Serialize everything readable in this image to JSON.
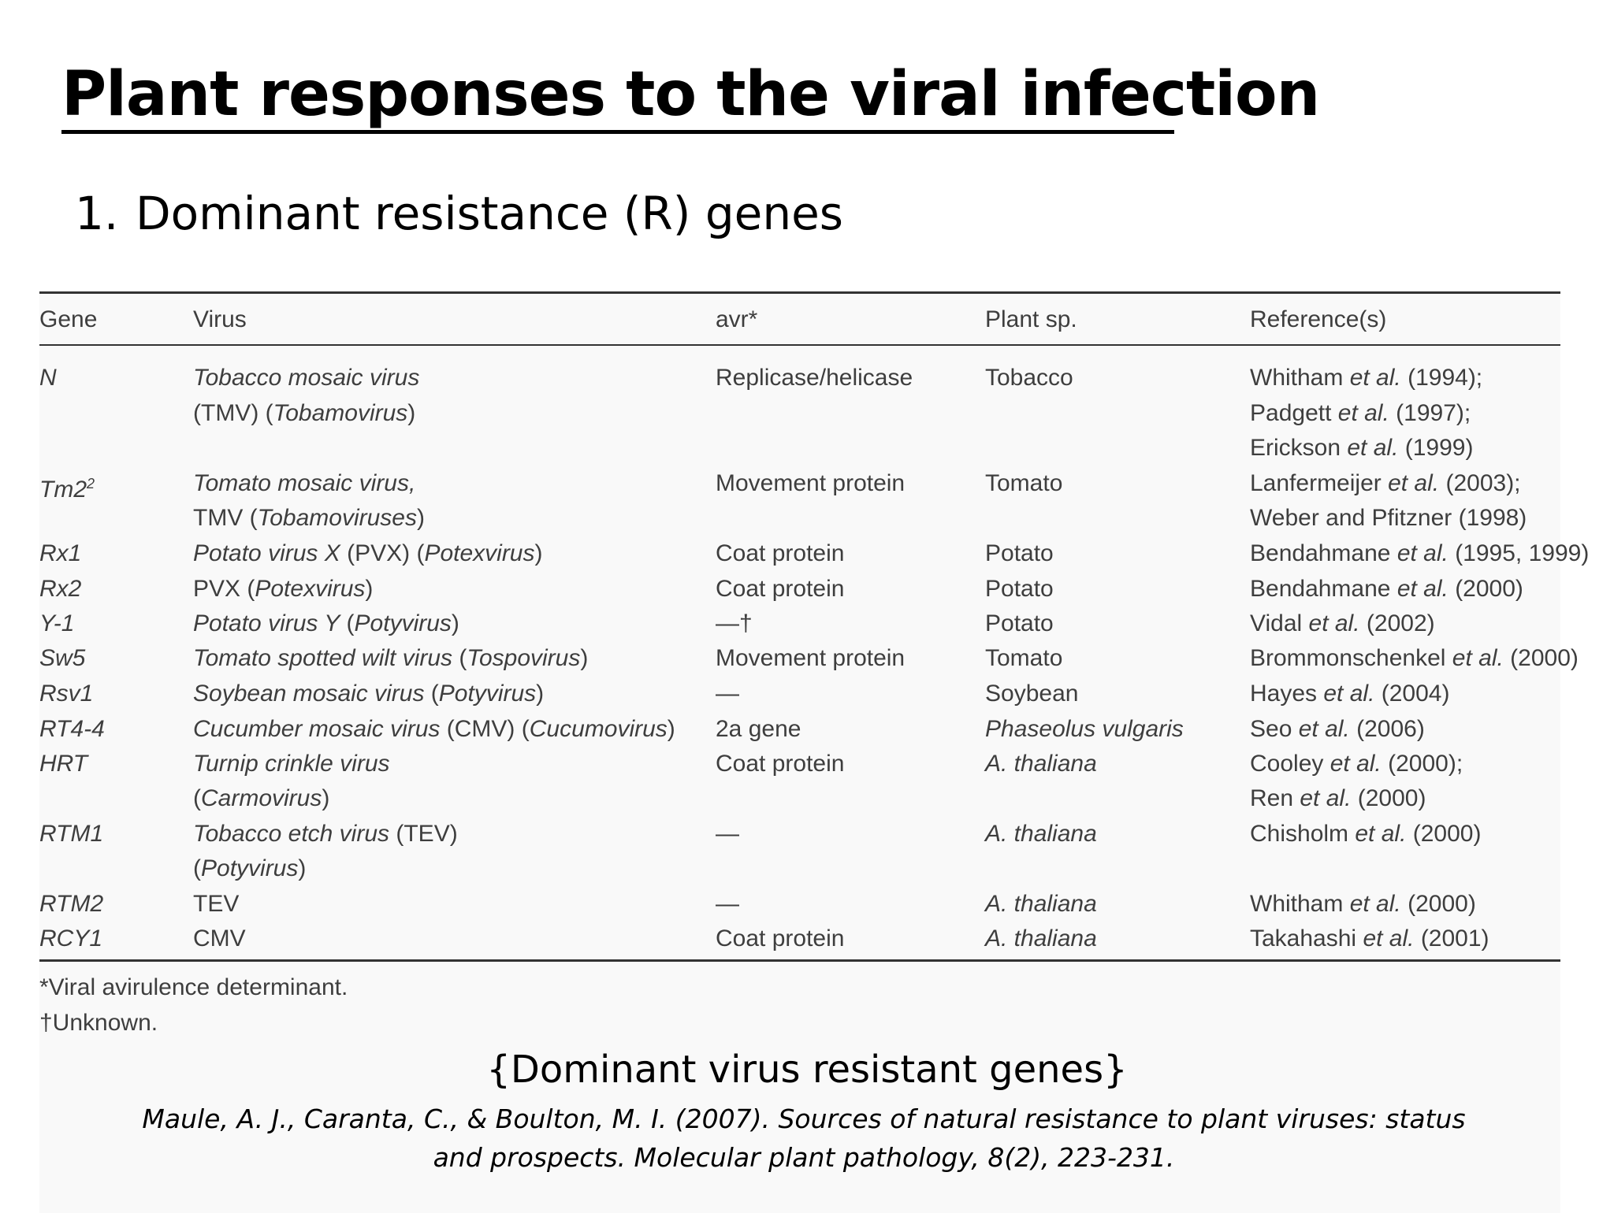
{
  "slide": {
    "title": "Plant responses to the viral infection",
    "subtitle_number": "1.",
    "subtitle_text": "Dominant resistance (R) genes",
    "caption": "{Dominant virus resistant genes}",
    "citation": "Maule, A. J., Caranta, C., & Boulton, M. I. (2007). Sources of natural resistance to plant viruses: status and prospects. Molecular plant pathology, 8(2), 223-231."
  },
  "table": {
    "headers": [
      "Gene",
      "Virus",
      "avr*",
      "Plant sp.",
      "Reference(s)"
    ],
    "footnotes": [
      "*Viral avirulence determinant.",
      "†Unknown."
    ]
  }
}
